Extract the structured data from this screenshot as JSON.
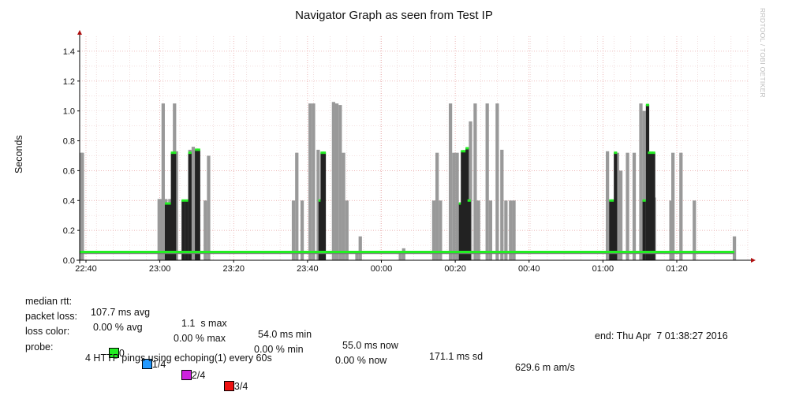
{
  "chart_data": {
    "type": "bar",
    "title": "Navigator Graph as seen from Test IP",
    "ylabel": "Seconds",
    "ylim": [
      0,
      1.5
    ],
    "y_ticks": [
      "0.0",
      "0.2",
      "0.4",
      "0.6",
      "0.8",
      "1.0",
      "1.2",
      "1.4"
    ],
    "x_ticks": [
      "22:40",
      "23:00",
      "23:20",
      "23:40",
      "00:00",
      "00:20",
      "00:40",
      "01:00",
      "01:20"
    ],
    "grid": true,
    "series": [
      {
        "name": "max rtt",
        "color": "#999999",
        "points": [
          [
            0.4,
            0.72
          ],
          [
            0.25,
            0.72
          ],
          [
            11.9,
            0.41
          ],
          [
            12.1,
            0.41
          ],
          [
            12.5,
            1.05
          ],
          [
            12.9,
            0.41
          ],
          [
            13.5,
            0.41
          ],
          [
            14.2,
            1.05
          ],
          [
            14.5,
            0.73
          ],
          [
            16,
            0.4
          ],
          [
            16.5,
            0.74
          ],
          [
            17,
            0.76
          ],
          [
            17.3,
            0.74
          ],
          [
            17.6,
            0.4
          ],
          [
            18.8,
            0.4
          ],
          [
            19.3,
            0.7
          ],
          [
            32,
            0.4
          ],
          [
            32.5,
            0.72
          ],
          [
            33.3,
            0.4
          ],
          [
            34.5,
            1.05
          ],
          [
            35,
            1.05
          ],
          [
            35.7,
            0.74
          ],
          [
            36.2,
            0.4
          ],
          [
            38,
            1.06
          ],
          [
            38.5,
            1.05
          ],
          [
            39,
            1.04
          ],
          [
            39.5,
            0.72
          ],
          [
            40,
            0.4
          ],
          [
            41.5,
            0.05
          ],
          [
            42,
            0.16
          ],
          [
            48,
            0.05
          ],
          [
            48.5,
            0.08
          ],
          [
            53,
            0.4
          ],
          [
            53.5,
            0.72
          ],
          [
            54,
            0.4
          ],
          [
            55.5,
            1.05
          ],
          [
            56,
            0.72
          ],
          [
            56.5,
            0.72
          ],
          [
            57.5,
            0.4
          ],
          [
            58,
            0.4
          ],
          [
            58.5,
            0.93
          ],
          [
            59.2,
            1.05
          ],
          [
            59.7,
            0.4
          ],
          [
            61,
            1.05
          ],
          [
            61.5,
            0.4
          ],
          [
            62.5,
            1.05
          ],
          [
            63.2,
            0.74
          ],
          [
            63.8,
            0.4
          ],
          [
            64.5,
            0.4
          ],
          [
            65,
            0.4
          ],
          [
            79,
            0.73
          ],
          [
            79.5,
            0.4
          ],
          [
            80,
            0.4
          ],
          [
            80.5,
            0.72
          ],
          [
            81,
            0.6
          ],
          [
            82,
            0.72
          ],
          [
            83,
            0.72
          ],
          [
            84,
            1.05
          ],
          [
            84.5,
            1.0
          ],
          [
            85,
            0.4
          ],
          [
            86,
            0.42
          ],
          [
            88.5,
            0.4
          ],
          [
            88.8,
            0.72
          ],
          [
            90,
            0.72
          ],
          [
            92,
            0.4
          ],
          [
            98,
            0.16
          ]
        ]
      },
      {
        "name": "median rtt",
        "color": "#222222",
        "points": [
          [
            13,
            0.38
          ],
          [
            13.3,
            0.38
          ],
          [
            13.6,
            0.38
          ],
          [
            13.9,
            0.72
          ],
          [
            14.2,
            0.72
          ],
          [
            15.5,
            0.4
          ],
          [
            16,
            0.4
          ],
          [
            16.5,
            0.72
          ],
          [
            17.5,
            0.74
          ],
          [
            17.8,
            0.74
          ],
          [
            36,
            0.4
          ],
          [
            36.3,
            0.72
          ],
          [
            36.6,
            0.72
          ],
          [
            57,
            0.38
          ],
          [
            57.3,
            0.73
          ],
          [
            57.6,
            0.73
          ],
          [
            58,
            0.75
          ],
          [
            58.3,
            0.4
          ],
          [
            79.5,
            0.4
          ],
          [
            79.8,
            0.4
          ],
          [
            80.2,
            0.72
          ],
          [
            84.5,
            0.4
          ],
          [
            85,
            1.04
          ],
          [
            85.3,
            0.72
          ],
          [
            85.6,
            0.72
          ],
          [
            85.9,
            0.72
          ]
        ]
      }
    ],
    "x_range": [
      0,
      100
    ],
    "baseline_color": "#22ee22"
  },
  "legend": {
    "median_rtt": {
      "label": "median rtt:",
      "avg": "107.7 ms avg",
      "max": "1.1  s max",
      "min": "54.0 ms min",
      "now": "55.0 ms now",
      "sd": "171.1 ms sd",
      "am": "629.6 m am/s"
    },
    "packet_loss": {
      "label": "packet loss:",
      "avg": "0.00 % avg",
      "max": "0.00 % max",
      "min": "0.00 % min",
      "now": "0.00 % now"
    },
    "loss_color": {
      "label": "loss color:",
      "items": [
        {
          "text": "0",
          "color": "#22ee22"
        },
        {
          "text": "1/4",
          "color": "#2299ff"
        },
        {
          "text": "2/4",
          "color": "#cc22dd"
        },
        {
          "text": "3/4",
          "color": "#ee1111"
        }
      ]
    },
    "probe": {
      "label": "probe:",
      "text": "4 HTTP pings using echoping(1) every 60s"
    },
    "end": "end: Thu Apr  7 01:38:27 2016"
  },
  "watermark": "RRDTOOL / TOBI OETIKER"
}
